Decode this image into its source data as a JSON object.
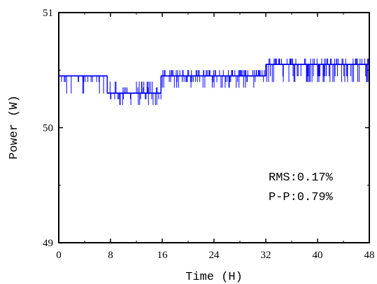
{
  "chart_data": {
    "type": "line",
    "title": "",
    "xlabel": "Time (H)",
    "ylabel": "Power (W)",
    "xlim": [
      0,
      48
    ],
    "ylim": [
      49,
      51
    ],
    "xticks": [
      0,
      8,
      16,
      24,
      32,
      40,
      48
    ],
    "yticks": [
      49,
      50,
      51
    ],
    "grid": false,
    "series_color": "#0000ff",
    "annotations": [
      "RMS:0.17%",
      "P-P:0.79%"
    ],
    "segments": [
      {
        "x": [
          0.0,
          7.5
        ],
        "base": 50.45,
        "low": [
          50.3,
          50.4
        ],
        "high": []
      },
      {
        "x": [
          7.5,
          15.8
        ],
        "base": 50.3,
        "low": [
          50.2,
          50.25
        ],
        "high": [
          50.35,
          50.4
        ]
      },
      {
        "x": [
          15.8,
          32.0
        ],
        "base": 50.45,
        "low": [
          50.4,
          50.35
        ],
        "high": [
          50.5
        ]
      },
      {
        "x": [
          32.0,
          48.0
        ],
        "base": 50.55,
        "low": [
          50.45,
          50.4
        ],
        "high": [
          50.6
        ]
      }
    ]
  }
}
